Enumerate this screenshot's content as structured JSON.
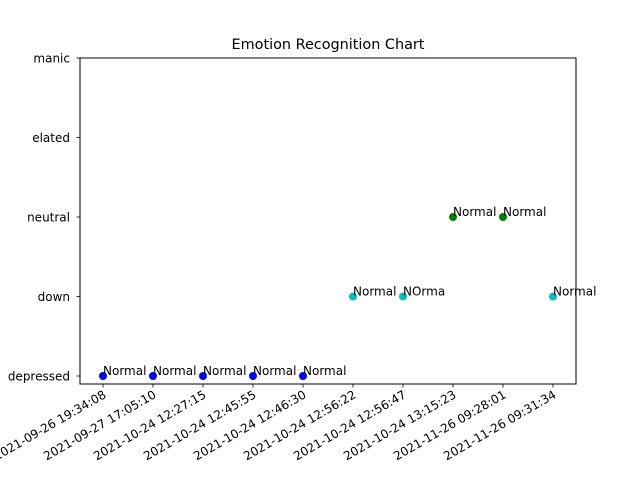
{
  "chart_data": {
    "type": "scatter",
    "title": "Emotion Recognition Chart",
    "xlabel": "",
    "ylabel": "",
    "x": [
      "2021-09-26 19:34:08",
      "2021-09-27 17:05:10",
      "2021-10-24 12:27:15",
      "2021-10-24 12:45:55",
      "2021-10-24 12:46:30",
      "2021-10-24 12:56:22",
      "2021-10-24 12:56:47",
      "2021-10-24 13:15:23",
      "2021-11-26 09:28:01",
      "2021-11-26 09:31:34"
    ],
    "y_categories": [
      "depressed",
      "down",
      "neutral",
      "elated",
      "manic"
    ],
    "y": [
      "depressed",
      "depressed",
      "depressed",
      "depressed",
      "depressed",
      "down",
      "down",
      "neutral",
      "neutral",
      "down"
    ],
    "labels": [
      "Normal",
      "Normal",
      "Normal",
      "Normal",
      "Normal",
      "Normal",
      "NOrma",
      "Normal",
      "Normal",
      "Normal"
    ],
    "point_colors": [
      "#0000ff",
      "#0000ff",
      "#0000ff",
      "#0000ff",
      "#0000ff",
      "#00bfbf",
      "#00bfbf",
      "#008000",
      "#008000",
      "#00bfbf"
    ],
    "grid": false,
    "legend": "none"
  }
}
